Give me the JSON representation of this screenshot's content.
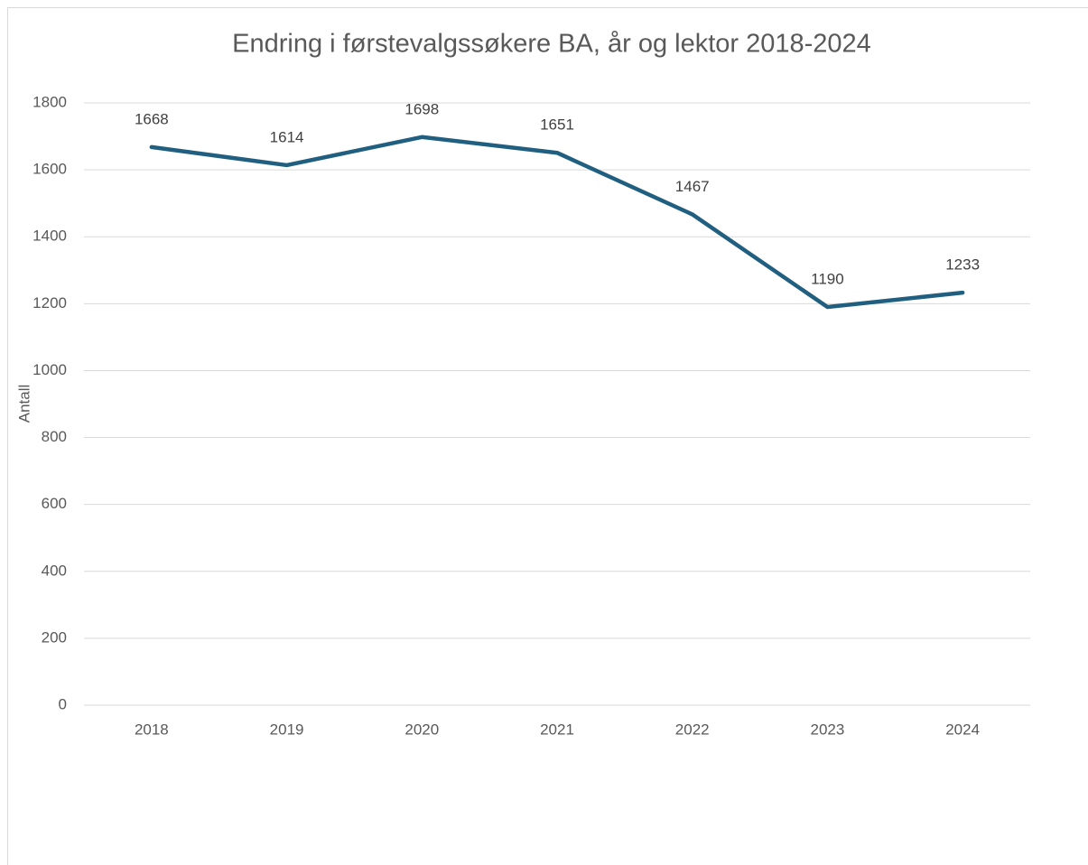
{
  "chart_data": {
    "type": "line",
    "title": "Endring i førstevalgssøkere BA, år og lektor 2018-2024",
    "y_label": "Antall",
    "categories": [
      "2018",
      "2019",
      "2020",
      "2021",
      "2022",
      "2023",
      "2024"
    ],
    "values": [
      1668,
      1614,
      1698,
      1651,
      1467,
      1190,
      1233
    ],
    "color": "#215f80",
    "ylim": [
      0,
      1800
    ],
    "yticks": [
      0,
      200,
      400,
      600,
      800,
      1000,
      1200,
      1400,
      1600,
      1800
    ],
    "grid": true,
    "data_labels": true
  }
}
